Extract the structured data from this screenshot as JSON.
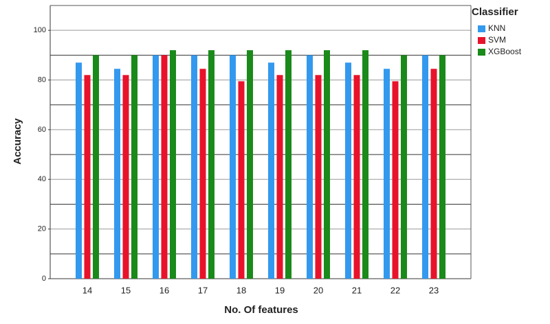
{
  "chart_data": {
    "type": "bar",
    "x_label": "No. Of features",
    "y_label": "Accuracy",
    "legend_title": "Classifier",
    "legend_position": "right",
    "categories": [
      "14",
      "15",
      "16",
      "17",
      "18",
      "19",
      "20",
      "21",
      "22",
      "23"
    ],
    "series": [
      {
        "name": "KNN",
        "color": "#3399ee",
        "values": [
          87,
          84.5,
          90,
          90,
          90,
          87,
          90,
          87,
          84.5,
          90
        ]
      },
      {
        "name": "SVM",
        "color": "#e8132b",
        "values": [
          82,
          82,
          90,
          84.5,
          79.5,
          82,
          82,
          82,
          79.5,
          84.5
        ]
      },
      {
        "name": "XGBoost",
        "color": "#1a8a1a",
        "values": [
          90,
          90,
          92,
          92,
          92,
          92,
          92,
          92,
          90,
          90
        ]
      }
    ],
    "ylim": [
      0,
      110
    ],
    "yticks": [
      0,
      20,
      40,
      60,
      80,
      100
    ],
    "yminorticks": [
      10,
      30,
      50,
      70,
      90
    ],
    "grid": true
  }
}
